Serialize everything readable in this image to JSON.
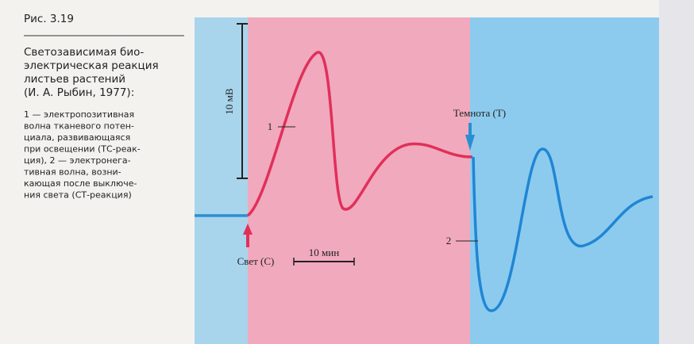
{
  "figure": {
    "label": "Рис. 3.19"
  },
  "caption": {
    "lines": [
      "Светозависимая био-",
      "электрическая реакция",
      "листьев растений",
      "(И. А. Рыбин, 1977):"
    ]
  },
  "legend": {
    "lines": [
      "1 — электропозитивная",
      "волна тканевого потен-",
      "циала, развивающаяся",
      "при освещении (ТС-реак-",
      "ция), 2 — электронега-",
      "тивная волна, возни-",
      "кающая после выключе-",
      "ния света (СТ-реакция)"
    ]
  },
  "diagram": {
    "voltage_scale": "10 мВ",
    "time_scale": "10 мин",
    "curve_1": "1",
    "curve_2": "2",
    "light_on": "Свет (С)",
    "light_off": "Темнота (Т)"
  }
}
